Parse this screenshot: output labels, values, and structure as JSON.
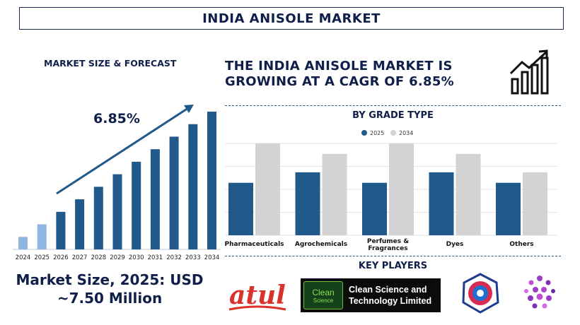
{
  "title": "INDIA ANISOLE MARKET",
  "left_panel": {
    "subtitle": "MARKET SIZE & FORECAST",
    "cagr_label": "6.85%",
    "market_size_line1": "Market Size, 2025: USD",
    "market_size_line2": "~7.50 Million"
  },
  "headline": "THE INDIA ANISOLE MARKET IS GROWING AT A CAGR OF 6.85%",
  "grade_section": {
    "title": "BY GRADE TYPE"
  },
  "key_players": {
    "title": "KEY PLAYERS",
    "atul_text": "atul",
    "clean_badge_line1": "Clean",
    "clean_badge_line2": "Science",
    "clean_name_line1": "Clean Science and",
    "clean_name_line2": "Technology Limited"
  },
  "colors": {
    "navy": "#0f1f4a",
    "bar_dark": "#215a8a",
    "bar_light_hist": "#8eb6e0",
    "bar_grey": "#d3d3d3",
    "atul_red": "#d9322a",
    "clean_green": "#8be04e"
  },
  "chart_data": [
    {
      "type": "bar",
      "title": "MARKET SIZE & FORECAST",
      "categories": [
        "2024",
        "2025",
        "2026",
        "2027",
        "2028",
        "2029",
        "2030",
        "2031",
        "2032",
        "2033",
        "2034"
      ],
      "values": [
        1.0,
        2.0,
        3.0,
        4.0,
        5.0,
        6.0,
        7.0,
        8.0,
        9.0,
        10.0,
        11.0
      ],
      "historical": [
        "2024",
        "2025"
      ],
      "annotation": "6.85%",
      "grid": false,
      "y_axis_labels": false
    },
    {
      "type": "bar",
      "title": "BY GRADE TYPE",
      "categories": [
        "Pharmaceuticals",
        "Agrochemicals",
        "Perfumes & Fragrances",
        "Dyes",
        "Others"
      ],
      "series": [
        {
          "name": "2025",
          "values": [
            2,
            2.4,
            2,
            2.4,
            2
          ]
        },
        {
          "name": "2034",
          "values": [
            3.5,
            3.1,
            3.5,
            3.1,
            2.4
          ]
        }
      ],
      "legend_position": "top-center",
      "grid": true,
      "y_axis_labels": false
    }
  ]
}
